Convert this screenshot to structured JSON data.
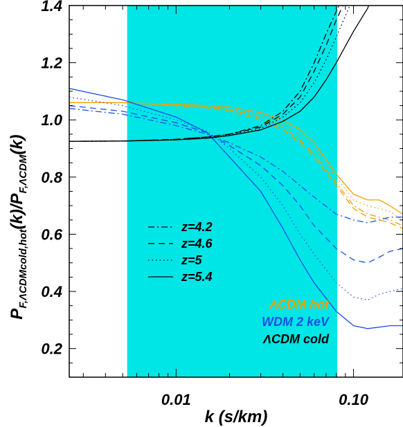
{
  "chart_data": {
    "type": "line",
    "xscale": "log",
    "xlim": [
      0.0025,
      0.19
    ],
    "ylim": [
      0.1,
      1.4
    ],
    "xlabel": "k (s/km)",
    "ylabel_parts": {
      "base": "P",
      "sub1": "F,ΛCDMcold,hot",
      "mid": "(k)/P",
      "sub2": "F,ΛCDM",
      "end": "(k)"
    },
    "x_ticks": [
      {
        "value": 0.01,
        "label": "0.01"
      },
      {
        "value": 0.1,
        "label": "0.10"
      }
    ],
    "y_ticks": [
      {
        "value": 0.2,
        "label": "0.2"
      },
      {
        "value": 0.4,
        "label": "0.4"
      },
      {
        "value": 0.6,
        "label": "0.6"
      },
      {
        "value": 0.8,
        "label": "0.8"
      },
      {
        "value": 1.0,
        "label": "1.0"
      },
      {
        "value": 1.2,
        "label": "1.2"
      },
      {
        "value": 1.4,
        "label": "1.4"
      }
    ],
    "shaded_region": {
      "x_range": [
        0.0053,
        0.081
      ],
      "color": "#00e5e5"
    },
    "linestyle_legend": [
      {
        "label": "z=4.2",
        "dash": "dashdot"
      },
      {
        "label": "z=4.6",
        "dash": "dashed"
      },
      {
        "label": "z=5",
        "dash": "dotted"
      },
      {
        "label": "z=5.4",
        "dash": "solid"
      }
    ],
    "model_legend": [
      {
        "label": "ΛCDM hot",
        "color": "#f0a000"
      },
      {
        "label": "WDM 2 keV",
        "color": "#1a4fe6"
      },
      {
        "label": "ΛCDM cold",
        "color": "#000000"
      }
    ],
    "series": [
      {
        "model": "ΛCDM hot",
        "z": "4.2",
        "color": "#f0a000",
        "dash": "dashdot",
        "points": [
          [
            0.0025,
            1.06
          ],
          [
            0.005,
            1.06
          ],
          [
            0.01,
            1.052
          ],
          [
            0.015,
            1.045
          ],
          [
            0.02,
            1.035
          ],
          [
            0.03,
            1.01
          ],
          [
            0.04,
            0.975
          ],
          [
            0.05,
            0.93
          ],
          [
            0.06,
            0.88
          ],
          [
            0.08,
            0.78
          ],
          [
            0.1,
            0.7
          ],
          [
            0.12,
            0.67
          ],
          [
            0.14,
            0.66
          ],
          [
            0.16,
            0.65
          ],
          [
            0.19,
            0.63
          ]
        ]
      },
      {
        "model": "ΛCDM hot",
        "z": "4.6",
        "color": "#f0a000",
        "dash": "dashed",
        "points": [
          [
            0.0025,
            1.06
          ],
          [
            0.005,
            1.06
          ],
          [
            0.01,
            1.05
          ],
          [
            0.015,
            1.042
          ],
          [
            0.02,
            1.03
          ],
          [
            0.03,
            1.0
          ],
          [
            0.04,
            0.965
          ],
          [
            0.05,
            0.92
          ],
          [
            0.06,
            0.87
          ],
          [
            0.08,
            0.77
          ],
          [
            0.1,
            0.69
          ],
          [
            0.12,
            0.66
          ],
          [
            0.14,
            0.65
          ],
          [
            0.16,
            0.64
          ],
          [
            0.19,
            0.62
          ]
        ]
      },
      {
        "model": "ΛCDM hot",
        "z": "5",
        "color": "#f0a000",
        "dash": "dotted",
        "points": [
          [
            0.0025,
            1.06
          ],
          [
            0.005,
            1.06
          ],
          [
            0.01,
            1.052
          ],
          [
            0.015,
            1.046
          ],
          [
            0.02,
            1.038
          ],
          [
            0.03,
            1.015
          ],
          [
            0.04,
            0.985
          ],
          [
            0.05,
            0.945
          ],
          [
            0.06,
            0.9
          ],
          [
            0.08,
            0.8
          ],
          [
            0.1,
            0.72
          ],
          [
            0.12,
            0.7
          ],
          [
            0.14,
            0.69
          ],
          [
            0.16,
            0.68
          ],
          [
            0.19,
            0.65
          ]
        ]
      },
      {
        "model": "ΛCDM hot",
        "z": "5.4",
        "color": "#f0a000",
        "dash": "solid",
        "points": [
          [
            0.0025,
            1.06
          ],
          [
            0.005,
            1.06
          ],
          [
            0.01,
            1.055
          ],
          [
            0.015,
            1.05
          ],
          [
            0.02,
            1.045
          ],
          [
            0.03,
            1.025
          ],
          [
            0.04,
            1.0
          ],
          [
            0.05,
            0.965
          ],
          [
            0.06,
            0.92
          ],
          [
            0.08,
            0.81
          ],
          [
            0.1,
            0.74
          ],
          [
            0.12,
            0.72
          ],
          [
            0.14,
            0.72
          ],
          [
            0.16,
            0.7
          ],
          [
            0.19,
            0.67
          ]
        ]
      },
      {
        "model": "WDM 2 keV",
        "z": "4.2",
        "color": "#1a4fe6",
        "dash": "dashdot",
        "points": [
          [
            0.0025,
            1.04
          ],
          [
            0.005,
            1.02
          ],
          [
            0.01,
            0.98
          ],
          [
            0.015,
            0.95
          ],
          [
            0.02,
            0.92
          ],
          [
            0.03,
            0.87
          ],
          [
            0.04,
            0.82
          ],
          [
            0.05,
            0.77
          ],
          [
            0.06,
            0.73
          ],
          [
            0.08,
            0.67
          ],
          [
            0.1,
            0.65
          ],
          [
            0.12,
            0.64
          ],
          [
            0.14,
            0.65
          ],
          [
            0.16,
            0.66
          ],
          [
            0.19,
            0.66
          ]
        ]
      },
      {
        "model": "WDM 2 keV",
        "z": "4.6",
        "color": "#1a4fe6",
        "dash": "dashed",
        "points": [
          [
            0.0025,
            1.05
          ],
          [
            0.005,
            1.03
          ],
          [
            0.01,
            0.99
          ],
          [
            0.015,
            0.955
          ],
          [
            0.02,
            0.91
          ],
          [
            0.03,
            0.84
          ],
          [
            0.04,
            0.77
          ],
          [
            0.05,
            0.7
          ],
          [
            0.06,
            0.63
          ],
          [
            0.08,
            0.55
          ],
          [
            0.1,
            0.51
          ],
          [
            0.12,
            0.5
          ],
          [
            0.14,
            0.52
          ],
          [
            0.16,
            0.54
          ],
          [
            0.19,
            0.55
          ]
        ]
      },
      {
        "model": "WDM 2 keV",
        "z": "5",
        "color": "#1a4fe6",
        "dash": "dotted",
        "points": [
          [
            0.0025,
            1.08
          ],
          [
            0.005,
            1.05
          ],
          [
            0.01,
            1.0
          ],
          [
            0.015,
            0.96
          ],
          [
            0.02,
            0.9
          ],
          [
            0.03,
            0.8
          ],
          [
            0.04,
            0.7
          ],
          [
            0.05,
            0.6
          ],
          [
            0.06,
            0.53
          ],
          [
            0.08,
            0.43
          ],
          [
            0.1,
            0.38
          ],
          [
            0.12,
            0.37
          ],
          [
            0.14,
            0.39
          ],
          [
            0.16,
            0.4
          ],
          [
            0.19,
            0.41
          ]
        ]
      },
      {
        "model": "WDM 2 keV",
        "z": "5.4",
        "color": "#1a4fe6",
        "dash": "solid",
        "points": [
          [
            0.0025,
            1.11
          ],
          [
            0.005,
            1.07
          ],
          [
            0.01,
            1.01
          ],
          [
            0.015,
            0.955
          ],
          [
            0.02,
            0.87
          ],
          [
            0.03,
            0.75
          ],
          [
            0.04,
            0.62
          ],
          [
            0.05,
            0.51
          ],
          [
            0.06,
            0.43
          ],
          [
            0.08,
            0.33
          ],
          [
            0.1,
            0.28
          ],
          [
            0.12,
            0.27
          ],
          [
            0.14,
            0.275
          ],
          [
            0.16,
            0.28
          ],
          [
            0.19,
            0.28
          ]
        ]
      },
      {
        "model": "ΛCDM cold",
        "z": "4.2",
        "color": "#000000",
        "dash": "dashdot",
        "points": [
          [
            0.0025,
            0.925
          ],
          [
            0.005,
            0.926
          ],
          [
            0.01,
            0.932
          ],
          [
            0.015,
            0.94
          ],
          [
            0.02,
            0.95
          ],
          [
            0.03,
            0.98
          ],
          [
            0.04,
            1.03
          ],
          [
            0.05,
            1.1
          ],
          [
            0.06,
            1.2
          ],
          [
            0.07,
            1.3
          ],
          [
            0.08,
            1.38
          ],
          [
            0.09,
            1.45
          ]
        ]
      },
      {
        "model": "ΛCDM cold",
        "z": "4.6",
        "color": "#000000",
        "dash": "dashed",
        "points": [
          [
            0.0025,
            0.925
          ],
          [
            0.005,
            0.926
          ],
          [
            0.01,
            0.932
          ],
          [
            0.015,
            0.94
          ],
          [
            0.02,
            0.95
          ],
          [
            0.03,
            0.975
          ],
          [
            0.04,
            1.02
          ],
          [
            0.05,
            1.08
          ],
          [
            0.06,
            1.17
          ],
          [
            0.07,
            1.26
          ],
          [
            0.08,
            1.35
          ],
          [
            0.095,
            1.45
          ]
        ]
      },
      {
        "model": "ΛCDM cold",
        "z": "5",
        "color": "#000000",
        "dash": "dotted",
        "points": [
          [
            0.0025,
            0.925
          ],
          [
            0.005,
            0.926
          ],
          [
            0.01,
            0.931
          ],
          [
            0.015,
            0.938
          ],
          [
            0.02,
            0.948
          ],
          [
            0.03,
            0.97
          ],
          [
            0.04,
            1.01
          ],
          [
            0.05,
            1.06
          ],
          [
            0.06,
            1.13
          ],
          [
            0.07,
            1.21
          ],
          [
            0.08,
            1.29
          ],
          [
            0.1,
            1.43
          ],
          [
            0.105,
            1.45
          ]
        ]
      },
      {
        "model": "ΛCDM cold",
        "z": "5.4",
        "color": "#000000",
        "dash": "solid",
        "points": [
          [
            0.0025,
            0.925
          ],
          [
            0.005,
            0.926
          ],
          [
            0.01,
            0.93
          ],
          [
            0.015,
            0.936
          ],
          [
            0.02,
            0.945
          ],
          [
            0.03,
            0.965
          ],
          [
            0.04,
            0.995
          ],
          [
            0.05,
            1.03
          ],
          [
            0.06,
            1.08
          ],
          [
            0.07,
            1.14
          ],
          [
            0.08,
            1.2
          ],
          [
            0.1,
            1.31
          ],
          [
            0.12,
            1.39
          ],
          [
            0.13,
            1.45
          ]
        ]
      }
    ]
  }
}
